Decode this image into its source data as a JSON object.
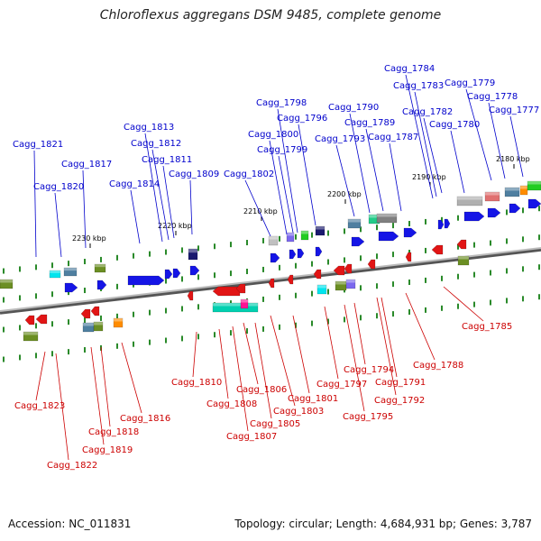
{
  "title": "Chloroflexus aggregans DSM 9485, complete genome",
  "footer": {
    "accession": "Accession: NC_011831",
    "topology": "Topology: circular; Length: 4,684,931 bp; Genes: 3,787"
  },
  "colors": {
    "forward_label": "#0000cc",
    "reverse_label": "#cc0000",
    "forward_gene": "#1515e6",
    "reverse_gene": "#e11515",
    "backbone": "#888888"
  },
  "ruler": [
    {
      "label": "2230 kbp"
    },
    {
      "label": "2220 kbp"
    },
    {
      "label": "2210 kbp"
    },
    {
      "label": "2200 kbp"
    },
    {
      "label": "2190 kbp"
    },
    {
      "label": "2180 kbp"
    }
  ],
  "forward_labels": [
    "Cagg_1821",
    "Cagg_1820",
    "Cagg_1817",
    "Cagg_1814",
    "Cagg_1813",
    "Cagg_1812",
    "Cagg_1811",
    "Cagg_1809",
    "Cagg_1802",
    "Cagg_1800",
    "Cagg_1799",
    "Cagg_1798",
    "Cagg_1796",
    "Cagg_1793",
    "Cagg_1790",
    "Cagg_1789",
    "Cagg_1787",
    "Cagg_1784",
    "Cagg_1783",
    "Cagg_1782",
    "Cagg_1780",
    "Cagg_1779",
    "Cagg_1778",
    "Cagg_1777"
  ],
  "reverse_labels": [
    "Cagg_1823",
    "Cagg_1822",
    "Cagg_1819",
    "Cagg_1818",
    "Cagg_1816",
    "Cagg_1810",
    "Cagg_1808",
    "Cagg_1807",
    "Cagg_1806",
    "Cagg_1805",
    "Cagg_1803",
    "Cagg_1801",
    "Cagg_1797",
    "Cagg_1795",
    "Cagg_1794",
    "Cagg_1792",
    "Cagg_1791",
    "Cagg_1788",
    "Cagg_1785"
  ]
}
